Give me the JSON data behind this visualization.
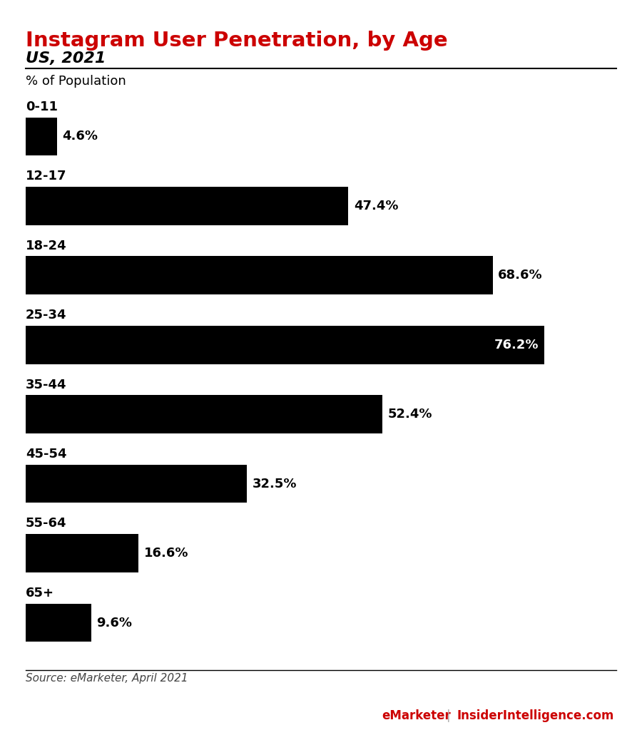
{
  "title": "Instagram User Penetration, by Age",
  "subtitle": "US, 2021",
  "pop_label": "% of Population",
  "source": "Source: eMarketer, April 2021",
  "footer_left": "eMarketer",
  "footer_sep": " | ",
  "footer_right": "InsiderIntelligence.com",
  "categories": [
    "0-11",
    "12-17",
    "18-24",
    "25-34",
    "35-44",
    "45-54",
    "55-64",
    "65+"
  ],
  "values": [
    4.6,
    47.4,
    68.6,
    76.2,
    52.4,
    32.5,
    16.6,
    9.6
  ],
  "bar_color": "#000000",
  "title_color": "#cc0000",
  "subtitle_color": "#000000",
  "label_color": "#000000",
  "value_color_outside": "#000000",
  "value_color_inside": "#ffffff",
  "background_color": "#ffffff",
  "top_bar_color": "#000000",
  "xlim_max": 83,
  "bar_height": 0.55,
  "figsize": [
    9.0,
    10.24
  ],
  "dpi": 100,
  "threshold_inside": 74
}
